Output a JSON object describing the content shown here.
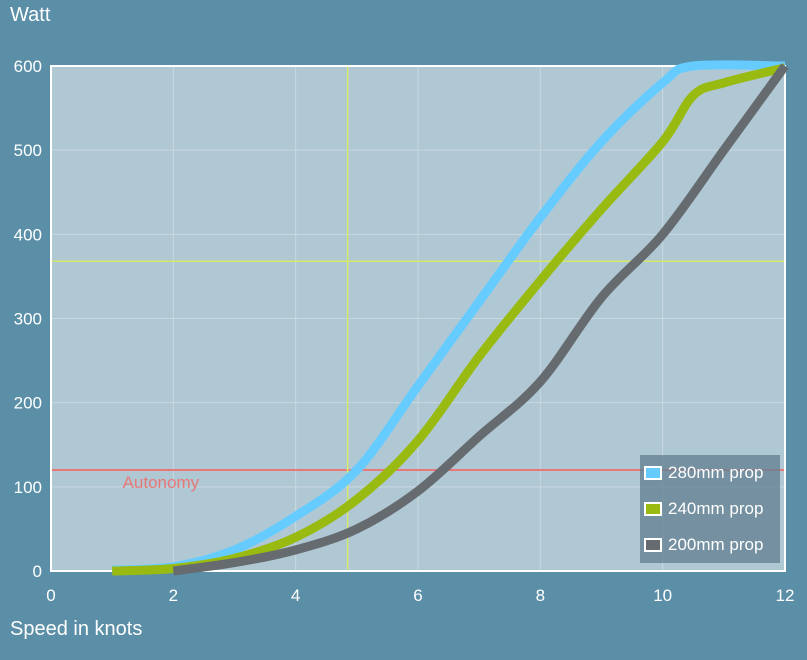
{
  "chart_data": {
    "type": "line",
    "xlabel": "Speed in knots",
    "ylabel": "Watt",
    "xlim": [
      0,
      12
    ],
    "ylim": [
      0,
      600
    ],
    "xticks": [
      0,
      2,
      4,
      6,
      8,
      10,
      12
    ],
    "yticks": [
      0,
      100,
      200,
      300,
      400,
      500,
      600
    ],
    "grid": true,
    "legend_position": "bottom-right",
    "series": [
      {
        "name": "280mm prop",
        "color": "#66ccff",
        "x": [
          1,
          2,
          3,
          4,
          5,
          6,
          7,
          8,
          9,
          10,
          10.5,
          12
        ],
        "y": [
          1,
          5,
          25,
          65,
          120,
          220,
          320,
          420,
          510,
          580,
          600,
          600
        ]
      },
      {
        "name": "240mm prop",
        "color": "#99bb11",
        "x": [
          1,
          2,
          3,
          4,
          5,
          6,
          7,
          8,
          9,
          10,
          10.5,
          11,
          12
        ],
        "y": [
          0,
          3,
          15,
          40,
          85,
          155,
          255,
          345,
          430,
          510,
          565,
          580,
          598
        ]
      },
      {
        "name": "200mm prop",
        "color": "#666b70",
        "x": [
          2,
          3,
          4,
          5,
          6,
          7,
          8,
          9,
          10,
          11,
          12
        ],
        "y": [
          0,
          10,
          25,
          50,
          95,
          160,
          225,
          325,
          400,
          500,
          600
        ]
      }
    ],
    "annotations": [
      {
        "type": "hline",
        "y": 120,
        "label": "Autonomy",
        "color": "#e87878"
      },
      {
        "type": "crosshair-v",
        "x": 4.85,
        "color": "#d4e86a"
      },
      {
        "type": "crosshair-h",
        "y": 368,
        "color": "#d4e86a"
      }
    ]
  }
}
